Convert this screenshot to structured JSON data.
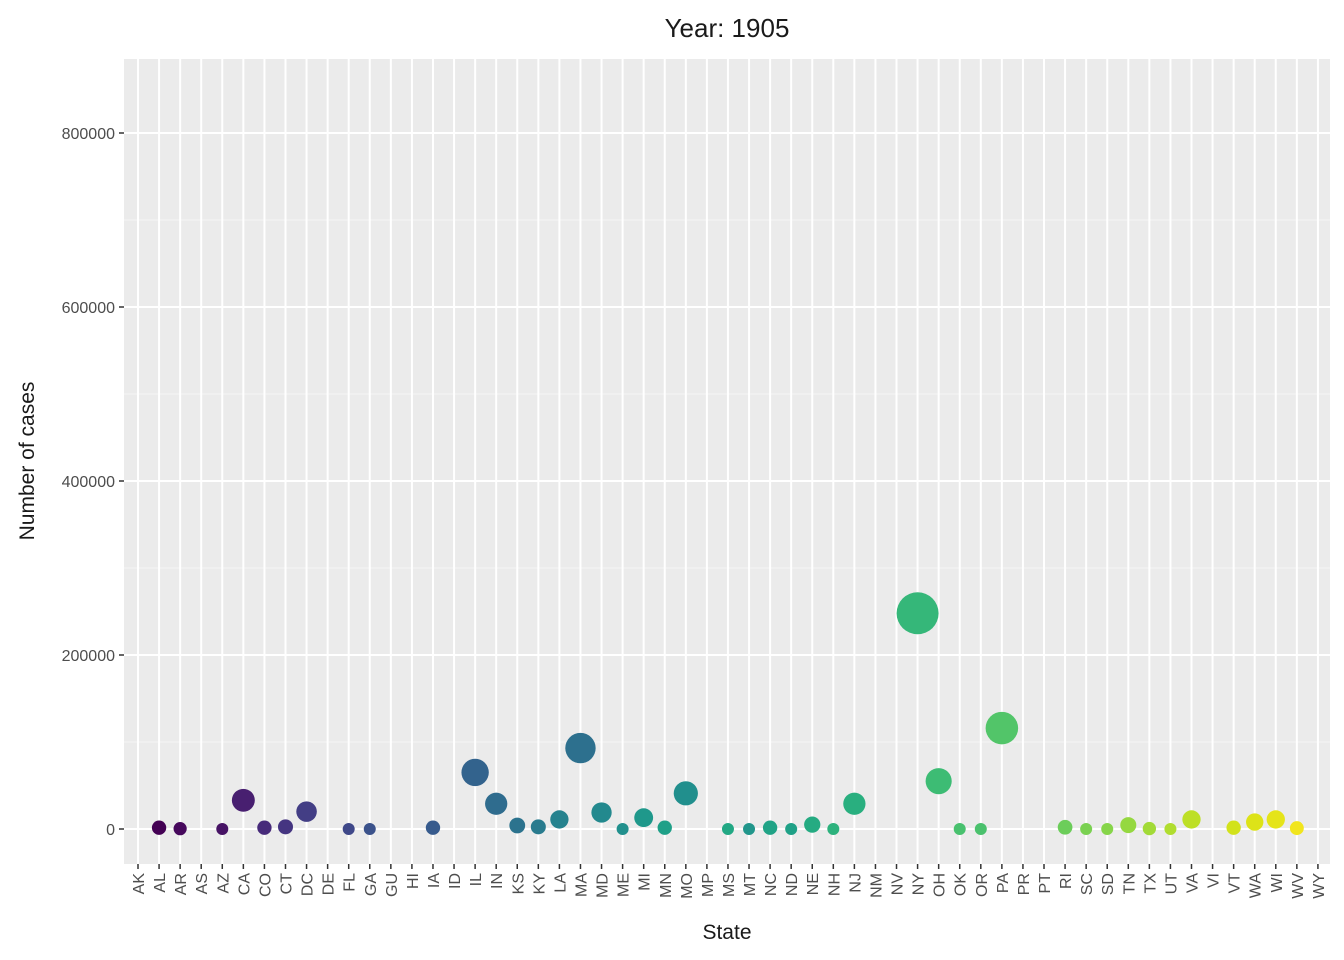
{
  "chart_data": {
    "type": "scatter",
    "title": "Year: 1905",
    "xlabel": "State",
    "ylabel": "Number of cases",
    "ylim": [
      -40000,
      880000
    ],
    "yticks": [
      0,
      200000,
      400000,
      600000,
      800000
    ],
    "ytick_labels": [
      "0",
      "200000",
      "400000",
      "600000",
      "800000"
    ],
    "grid": true,
    "categories": [
      "AK",
      "AL",
      "AR",
      "AS",
      "AZ",
      "CA",
      "CO",
      "CT",
      "DC",
      "DE",
      "FL",
      "GA",
      "GU",
      "HI",
      "IA",
      "ID",
      "IL",
      "IN",
      "KS",
      "KY",
      "LA",
      "MA",
      "MD",
      "ME",
      "MI",
      "MN",
      "MO",
      "MP",
      "MS",
      "MT",
      "NC",
      "ND",
      "NE",
      "NH",
      "NJ",
      "NM",
      "NV",
      "NY",
      "OH",
      "OK",
      "OR",
      "PA",
      "PR",
      "PT",
      "RI",
      "SC",
      "SD",
      "TN",
      "TX",
      "UT",
      "VA",
      "VI",
      "VT",
      "WA",
      "WI",
      "WV",
      "WY"
    ],
    "points": [
      {
        "state": "AL",
        "value": 1500,
        "color": "#440154"
      },
      {
        "state": "AR",
        "value": 400,
        "color": "#46085c"
      },
      {
        "state": "AZ",
        "value": 0,
        "color": "#471365"
      },
      {
        "state": "CA",
        "value": 33000,
        "color": "#481f70"
      },
      {
        "state": "CO",
        "value": 1500,
        "color": "#472a7a"
      },
      {
        "state": "CT",
        "value": 2500,
        "color": "#453581"
      },
      {
        "state": "DC",
        "value": 20000,
        "color": "#433e85"
      },
      {
        "state": "FL",
        "value": 0,
        "color": "#3f4889"
      },
      {
        "state": "GA",
        "value": 0,
        "color": "#3b528b"
      },
      {
        "state": "IA",
        "value": 1500,
        "color": "#375b8d"
      },
      {
        "state": "IL",
        "value": 65000,
        "color": "#33638d"
      },
      {
        "state": "IN",
        "value": 29000,
        "color": "#2f6c8e"
      },
      {
        "state": "KS",
        "value": 4000,
        "color": "#2c738e"
      },
      {
        "state": "KY",
        "value": 2500,
        "color": "#297b8e"
      },
      {
        "state": "LA",
        "value": 11000,
        "color": "#26828e"
      },
      {
        "state": "MA",
        "value": 93000,
        "color": "#2d708e"
      },
      {
        "state": "MD",
        "value": 19000,
        "color": "#23898e"
      },
      {
        "state": "ME",
        "value": 0,
        "color": "#21908d"
      },
      {
        "state": "MI",
        "value": 13000,
        "color": "#1f988b"
      },
      {
        "state": "MN",
        "value": 1500,
        "color": "#1fa088"
      },
      {
        "state": "MO",
        "value": 41000,
        "color": "#218f8d"
      },
      {
        "state": "MS",
        "value": 0,
        "color": "#22a884"
      },
      {
        "state": "MT",
        "value": 0,
        "color": "#21968b"
      },
      {
        "state": "NC",
        "value": 1500,
        "color": "#20a386"
      },
      {
        "state": "ND",
        "value": 0,
        "color": "#1fa187"
      },
      {
        "state": "NE",
        "value": 5000,
        "color": "#25ab82"
      },
      {
        "state": "NH",
        "value": 0,
        "color": "#2db27d"
      },
      {
        "state": "NJ",
        "value": 29000,
        "color": "#29af7f"
      },
      {
        "state": "NY",
        "value": 248000,
        "color": "#35b779"
      },
      {
        "state": "OH",
        "value": 55000,
        "color": "#3dbc74"
      },
      {
        "state": "OK",
        "value": 0,
        "color": "#48c16e"
      },
      {
        "state": "OR",
        "value": 0,
        "color": "#4ac16d"
      },
      {
        "state": "PA",
        "value": 116000,
        "color": "#52c569"
      },
      {
        "state": "RI",
        "value": 2000,
        "color": "#6ccd5a"
      },
      {
        "state": "SC",
        "value": 0,
        "color": "#7ad151"
      },
      {
        "state": "SD",
        "value": 0,
        "color": "#86d549"
      },
      {
        "state": "TN",
        "value": 4500,
        "color": "#95d840"
      },
      {
        "state": "TX",
        "value": 500,
        "color": "#a2da37"
      },
      {
        "state": "UT",
        "value": 0,
        "color": "#b0dd2f"
      },
      {
        "state": "VA",
        "value": 11000,
        "color": "#bddf26"
      },
      {
        "state": "VT",
        "value": 1500,
        "color": "#d2e21b"
      },
      {
        "state": "WA",
        "value": 8000,
        "color": "#dde318"
      },
      {
        "state": "WI",
        "value": 11000,
        "color": "#e5e419"
      },
      {
        "state": "WV",
        "value": 1000,
        "color": "#f1e51d"
      }
    ]
  }
}
